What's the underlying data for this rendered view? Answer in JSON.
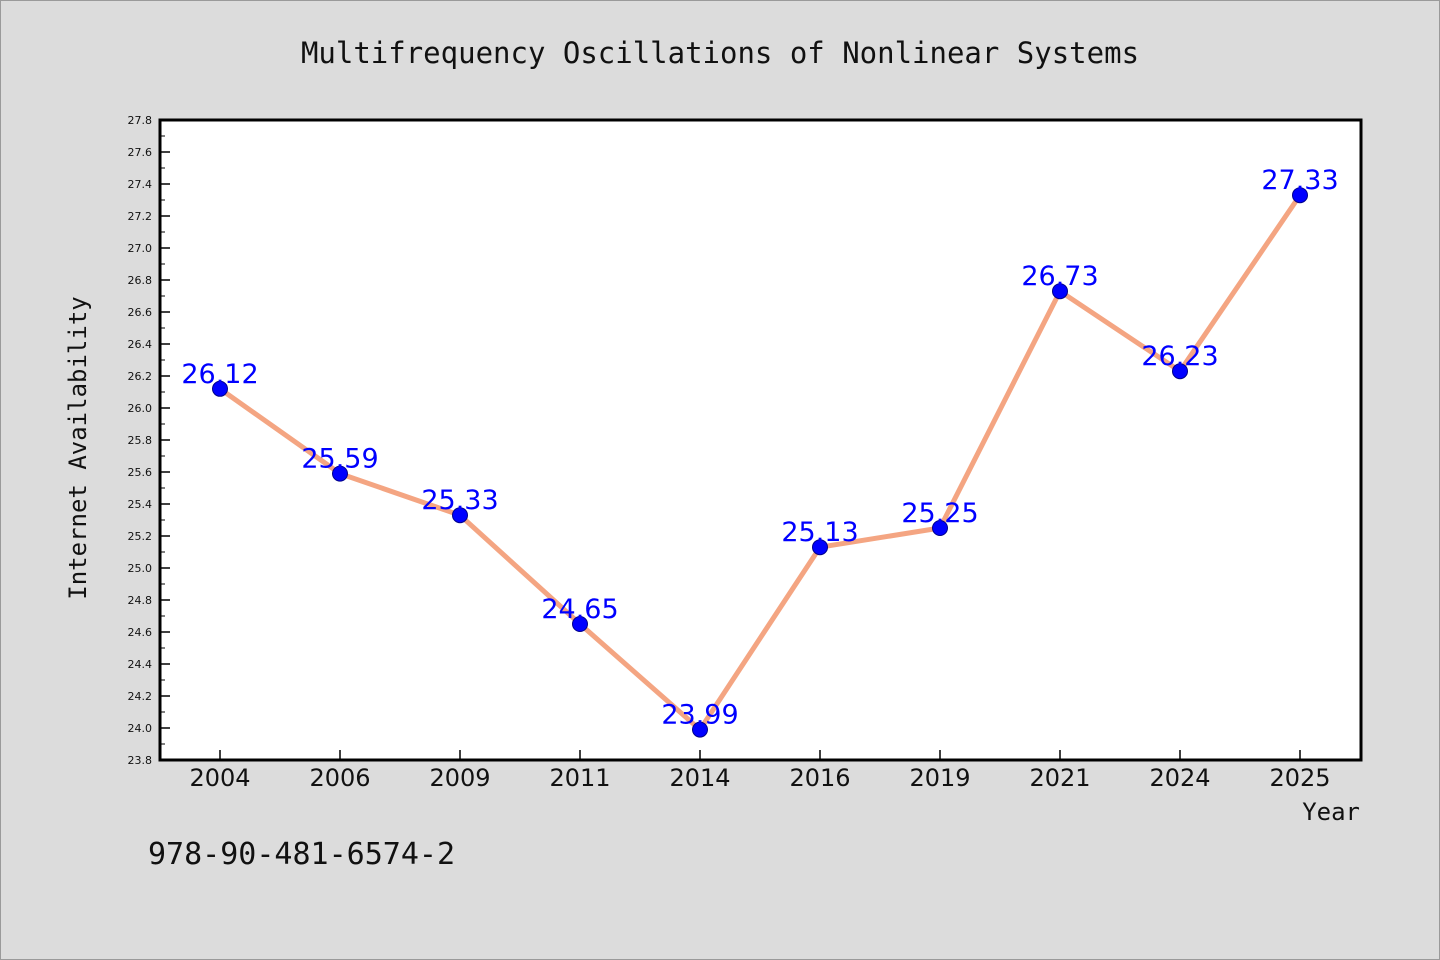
{
  "chart_data": {
    "type": "line",
    "title": "Multifrequency Oscillations of Nonlinear Systems",
    "xlabel": "Year",
    "ylabel": "Internet Availability",
    "categories": [
      "2004",
      "2006",
      "2009",
      "2011",
      "2014",
      "2016",
      "2019",
      "2021",
      "2024",
      "2025"
    ],
    "values": [
      26.12,
      25.59,
      25.33,
      24.65,
      23.99,
      25.13,
      25.25,
      26.73,
      26.23,
      27.33
    ],
    "data_labels": [
      "26.12",
      "25.59",
      "25.33",
      "24.65",
      "23.99",
      "25.13",
      "25.25",
      "26.73",
      "26.23",
      "27.33"
    ],
    "ylim": [
      23.8,
      27.8
    ],
    "yticks": [
      "23.8",
      "24.0",
      "24.2",
      "24.4",
      "24.6",
      "24.8",
      "25.0",
      "25.2",
      "25.4",
      "25.6",
      "25.8",
      "26.0",
      "26.2",
      "26.4",
      "26.6",
      "26.8",
      "27.0",
      "27.2",
      "27.4",
      "27.6",
      "27.8"
    ],
    "grid": false,
    "line_color": "#f4a582",
    "marker_color": "#0000ff",
    "label_color": "#0000ff"
  },
  "annotation": "978-90-481-6574-2"
}
